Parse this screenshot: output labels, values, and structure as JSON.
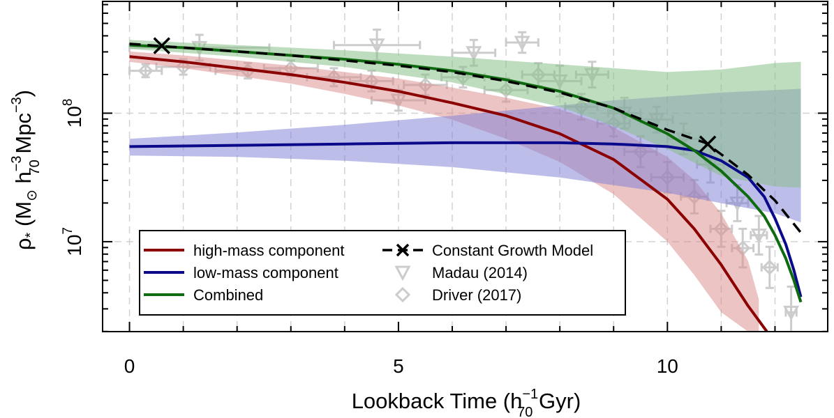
{
  "chart_data": {
    "type": "line",
    "title": "",
    "xlabel": "Lookback Time (h",
    "xlabel_sup": "−1",
    "xlabel_sub": "70",
    "xlabel_tail": " Gyr)",
    "ylabel_rho": "ρ",
    "ylabel_rho_sub": "*",
    "ylabel_head": " (M",
    "ylabel_sun": "⊙",
    "ylabel_h": " h",
    "ylabel_h_sup": "−3",
    "ylabel_h_sub": "70",
    "ylabel_mpc": " Mpc",
    "ylabel_mpc_sup": "−3",
    "ylabel_close": ")",
    "xlim": [
      -0.5,
      12.98
    ],
    "ylim_log10": [
      6.3,
      8.87
    ],
    "xticks": [
      {
        "value": 0,
        "label": "0"
      },
      {
        "value": 5,
        "label": "5"
      },
      {
        "value": 10,
        "label": "10"
      }
    ],
    "x_minor_ticks": [
      1,
      2,
      3,
      4,
      6,
      7,
      8,
      9,
      11,
      12
    ],
    "yticks": [
      {
        "log10": 7,
        "base": "10",
        "exp": "7"
      },
      {
        "log10": 8,
        "base": "10",
        "exp": "8"
      }
    ],
    "grid": true,
    "legend_position": "bottom-left",
    "series": [
      {
        "name": "high-mass component",
        "color": "#8b0000",
        "band_color": "#d98a8a",
        "band_opacity": 0.5,
        "x": [
          0,
          1,
          2,
          3,
          4,
          5,
          6,
          7,
          8,
          9,
          10,
          10.5,
          11,
          11.5,
          11.85
        ],
        "y": [
          8.44,
          8.4,
          8.35,
          8.3,
          8.24,
          8.17,
          8.08,
          7.98,
          7.84,
          7.64,
          7.33,
          7.1,
          6.82,
          6.5,
          6.3
        ],
        "band_x": [
          0,
          1,
          2,
          3,
          4,
          5,
          6,
          7,
          8,
          9,
          10,
          10.5,
          11,
          11.5,
          11.7
        ],
        "band_low": [
          8.4,
          8.35,
          8.29,
          8.23,
          8.15,
          8.06,
          7.95,
          7.8,
          7.62,
          7.37,
          7.0,
          6.74,
          6.45,
          6.3,
          6.3
        ],
        "band_high": [
          8.48,
          8.45,
          8.41,
          8.37,
          8.32,
          8.27,
          8.2,
          8.12,
          8.03,
          7.89,
          7.66,
          7.48,
          7.22,
          6.85,
          6.55
        ]
      },
      {
        "name": "low-mass component",
        "color": "#0a0a8b",
        "band_color": "#7b7bd6",
        "band_opacity": 0.5,
        "x": [
          0,
          2,
          4,
          6,
          8,
          9,
          10,
          10.5,
          11,
          11.5,
          11.8,
          12.0,
          12.2,
          12.35,
          12.48
        ],
        "y": [
          7.74,
          7.75,
          7.76,
          7.77,
          7.77,
          7.76,
          7.74,
          7.71,
          7.63,
          7.5,
          7.35,
          7.18,
          6.98,
          6.78,
          6.57
        ],
        "band_x": [
          0,
          2,
          4,
          6,
          8,
          9,
          10,
          11,
          12.0,
          12.48
        ],
        "band_low": [
          7.67,
          7.66,
          7.63,
          7.58,
          7.5,
          7.44,
          7.38,
          7.3,
          7.22,
          7.15
        ],
        "band_high": [
          7.8,
          7.85,
          7.91,
          7.98,
          8.06,
          8.1,
          8.13,
          8.16,
          8.18,
          8.19
        ]
      },
      {
        "name": "Combined",
        "color": "#0f6b0f",
        "band_color": "#88c088",
        "band_opacity": 0.55,
        "x": [
          0,
          1,
          2,
          3,
          4,
          5,
          6,
          7,
          8,
          9,
          10,
          10.5,
          11,
          11.5,
          11.8,
          12.0,
          12.2,
          12.35,
          12.48
        ],
        "y": [
          8.53,
          8.51,
          8.48,
          8.45,
          8.42,
          8.38,
          8.33,
          8.26,
          8.17,
          8.04,
          7.84,
          7.71,
          7.55,
          7.35,
          7.2,
          7.05,
          6.87,
          6.7,
          6.53
        ],
        "band_x": [
          0,
          2,
          4,
          6,
          8,
          9,
          10,
          11,
          12.0,
          12.48
        ],
        "band_low": [
          8.5,
          8.44,
          8.36,
          8.24,
          8.05,
          7.9,
          7.72,
          7.51,
          7.43,
          7.42
        ],
        "band_high": [
          8.57,
          8.53,
          8.49,
          8.44,
          8.38,
          8.35,
          8.32,
          8.34,
          8.39,
          8.4
        ]
      },
      {
        "name": "Constant Growth Model",
        "color": "#000000",
        "dashed": true,
        "x": [
          0,
          1,
          2,
          3,
          4,
          5,
          6,
          7,
          8,
          9,
          10,
          10.7,
          11,
          11.5,
          12.0,
          12.5
        ],
        "y": [
          8.54,
          8.51,
          8.48,
          8.45,
          8.41,
          8.37,
          8.32,
          8.25,
          8.16,
          8.04,
          7.87,
          7.77,
          7.68,
          7.52,
          7.32,
          7.06
        ],
        "markers": [
          {
            "x": 0.6,
            "y": 8.525
          },
          {
            "x": 10.75,
            "y": 7.76
          }
        ]
      }
    ],
    "observations": [
      {
        "name": "Madau (2014)",
        "color": "#cccccc",
        "marker": "triangle-down",
        "points": [
          {
            "x": 1.3,
            "y": 8.51,
            "xerr": 1.3,
            "yerr": 0.1
          },
          {
            "x": 4.6,
            "y": 8.53,
            "xerr": 0.8,
            "yerr": 0.12
          },
          {
            "x": 5.0,
            "y": 8.1,
            "xerr": 0.5,
            "yerr": 0.08
          },
          {
            "x": 6.4,
            "y": 8.47,
            "xerr": 0.4,
            "yerr": 0.1
          },
          {
            "x": 7.3,
            "y": 8.55,
            "xerr": 0.3,
            "yerr": 0.08
          },
          {
            "x": 8.0,
            "y": 8.25,
            "xerr": 0.4,
            "yerr": 0.12
          },
          {
            "x": 8.6,
            "y": 8.3,
            "xerr": 0.3,
            "yerr": 0.1
          },
          {
            "x": 9.2,
            "y": 8.0,
            "xerr": 0.3,
            "yerr": 0.12
          },
          {
            "x": 9.8,
            "y": 7.95,
            "xerr": 0.3,
            "yerr": 0.1
          },
          {
            "x": 10.3,
            "y": 7.8,
            "xerr": 0.3,
            "yerr": 0.12
          },
          {
            "x": 10.8,
            "y": 7.6,
            "xerr": 0.25,
            "yerr": 0.14
          },
          {
            "x": 11.3,
            "y": 7.3,
            "xerr": 0.2,
            "yerr": 0.14
          },
          {
            "x": 11.7,
            "y": 7.05,
            "xerr": 0.15,
            "yerr": 0.15
          },
          {
            "x": 12.3,
            "y": 6.45,
            "xerr": 0.1,
            "yerr": 0.2
          }
        ]
      },
      {
        "name": "Driver (2017)",
        "color": "#cccccc",
        "marker": "diamond",
        "points": [
          {
            "x": 0.3,
            "y": 8.33,
            "xerr": 0.3,
            "yerr": 0.05
          },
          {
            "x": 1.0,
            "y": 8.36,
            "xerr": 0.5,
            "yerr": 0.06
          },
          {
            "x": 2.2,
            "y": 8.33,
            "xerr": 0.6,
            "yerr": 0.06
          },
          {
            "x": 3.0,
            "y": 8.35,
            "xerr": 0.5,
            "yerr": 0.06
          },
          {
            "x": 3.8,
            "y": 8.28,
            "xerr": 0.5,
            "yerr": 0.07
          },
          {
            "x": 4.5,
            "y": 8.25,
            "xerr": 0.4,
            "yerr": 0.08
          },
          {
            "x": 5.5,
            "y": 8.22,
            "xerr": 0.4,
            "yerr": 0.08
          },
          {
            "x": 6.2,
            "y": 8.28,
            "xerr": 0.4,
            "yerr": 0.08
          },
          {
            "x": 7.0,
            "y": 8.18,
            "xerr": 0.4,
            "yerr": 0.09
          },
          {
            "x": 7.6,
            "y": 8.3,
            "xerr": 0.3,
            "yerr": 0.09
          },
          {
            "x": 8.4,
            "y": 8.05,
            "xerr": 0.3,
            "yerr": 0.1
          },
          {
            "x": 9.0,
            "y": 7.92,
            "xerr": 0.3,
            "yerr": 0.1
          },
          {
            "x": 9.5,
            "y": 7.7,
            "xerr": 0.3,
            "yerr": 0.12
          },
          {
            "x": 10.0,
            "y": 7.5,
            "xerr": 0.3,
            "yerr": 0.12
          },
          {
            "x": 10.5,
            "y": 7.35,
            "xerr": 0.25,
            "yerr": 0.13
          },
          {
            "x": 11.0,
            "y": 7.1,
            "xerr": 0.2,
            "yerr": 0.14
          },
          {
            "x": 11.4,
            "y": 6.95,
            "xerr": 0.2,
            "yerr": 0.15
          },
          {
            "x": 11.9,
            "y": 6.8,
            "xerr": 0.15,
            "yerr": 0.16
          }
        ]
      }
    ],
    "legend": {
      "items": [
        {
          "label": "high-mass component",
          "type": "line",
          "color": "#8b0000"
        },
        {
          "label": "low-mass component",
          "type": "line",
          "color": "#0a0a8b"
        },
        {
          "label": "Combined",
          "type": "line",
          "color": "#0f6b0f"
        },
        {
          "label": "Constant Growth Model",
          "type": "dashed-x",
          "color": "#000000"
        },
        {
          "label": "Madau (2014)",
          "type": "triangle-down",
          "color": "#cccccc"
        },
        {
          "label": "Driver (2017)",
          "type": "diamond",
          "color": "#cccccc"
        }
      ]
    }
  }
}
